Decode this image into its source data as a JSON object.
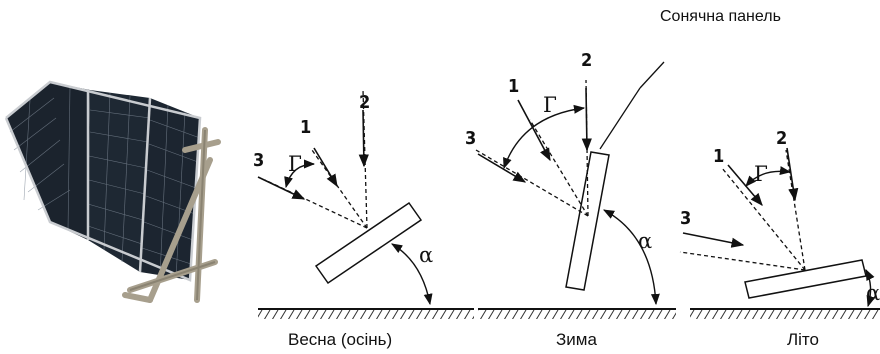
{
  "title": "Сонячна панель",
  "scenes": [
    {
      "caption": "Весна (осінь)",
      "rays": [
        "1",
        "2",
        "3"
      ],
      "gamma": "Г",
      "alpha": "α"
    },
    {
      "caption": "Зима",
      "rays": [
        "1",
        "2",
        "3"
      ],
      "gamma": "Г",
      "alpha": "α"
    },
    {
      "caption": "Літо",
      "rays": [
        "1",
        "2",
        "3"
      ],
      "gamma": "Г",
      "alpha": "α"
    }
  ],
  "colors": {
    "line": "#111111",
    "panel_cell": "#1e2732",
    "frame": "#a79f8d"
  }
}
